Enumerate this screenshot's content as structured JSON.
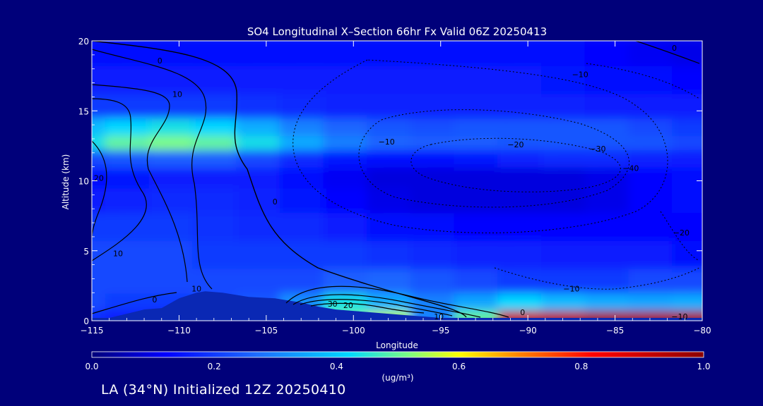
{
  "chart_data": {
    "type": "heatmap",
    "title": "SO4 Longitudinal X–Section 66hr  Fx Valid 06Z 20250413",
    "xlabel": "Longitude",
    "ylabel": "Altitude (km)",
    "xlim": [
      -115,
      -80
    ],
    "ylim": [
      0,
      20
    ],
    "xticks": [
      -115,
      -110,
      -105,
      -100,
      -95,
      -90,
      -85,
      -80
    ],
    "xtick_labels": [
      "−115",
      "−110",
      "−105",
      "−100",
      "−95",
      "−90",
      "−85",
      "−80"
    ],
    "yticks": [
      0,
      5,
      10,
      15,
      20
    ],
    "ytick_labels": [
      "0",
      "5",
      "10",
      "15",
      "20"
    ],
    "colorbar": {
      "label": "(ug/m³)",
      "min": 0.0,
      "max": 1.0,
      "ticks": [
        "0.0",
        "0.2",
        "0.4",
        "0.6",
        "0.8",
        "1.0"
      ],
      "colors": [
        "#00007a",
        "#0000ff",
        "#1e6dff",
        "#00d8ff",
        "#7fff7f",
        "#ffff00",
        "#ff8000",
        "#ff0000",
        "#8b0000"
      ]
    },
    "x": [
      -115,
      -112.5,
      -110,
      -107.5,
      -105,
      -102.5,
      -100,
      -97.5,
      -95,
      -92.5,
      -90,
      -87.5,
      -85,
      -82.5,
      -80
    ],
    "y": [
      0.5,
      1.5,
      3,
      5,
      7,
      9,
      10.5,
      12,
      13,
      14,
      15.5,
      17.5,
      19.5
    ],
    "values": [
      [
        0.18,
        0.16,
        0.14,
        0.16,
        0.2,
        0.26,
        0.5,
        0.55,
        0.3,
        0.5,
        0.9,
        0.92,
        0.95,
        0.95,
        0.95
      ],
      [
        0.22,
        0.2,
        0.2,
        0.22,
        0.24,
        0.32,
        0.44,
        0.36,
        0.3,
        0.35,
        0.42,
        0.38,
        0.36,
        0.35,
        0.36
      ],
      [
        0.22,
        0.22,
        0.22,
        0.22,
        0.22,
        0.22,
        0.25,
        0.26,
        0.24,
        0.22,
        0.2,
        0.2,
        0.2,
        0.22,
        0.22
      ],
      [
        0.22,
        0.22,
        0.22,
        0.2,
        0.2,
        0.2,
        0.2,
        0.19,
        0.18,
        0.17,
        0.17,
        0.16,
        0.16,
        0.16,
        0.14
      ],
      [
        0.2,
        0.2,
        0.2,
        0.19,
        0.18,
        0.18,
        0.16,
        0.14,
        0.13,
        0.12,
        0.12,
        0.12,
        0.12,
        0.12,
        0.12
      ],
      [
        0.16,
        0.17,
        0.18,
        0.18,
        0.17,
        0.15,
        0.12,
        0.1,
        0.09,
        0.09,
        0.09,
        0.09,
        0.1,
        0.12,
        0.14
      ],
      [
        0.14,
        0.15,
        0.16,
        0.16,
        0.16,
        0.14,
        0.11,
        0.09,
        0.09,
        0.09,
        0.09,
        0.09,
        0.1,
        0.12,
        0.14
      ],
      [
        0.22,
        0.24,
        0.25,
        0.25,
        0.22,
        0.18,
        0.15,
        0.14,
        0.14,
        0.15,
        0.17,
        0.18,
        0.18,
        0.17,
        0.16
      ],
      [
        0.44,
        0.5,
        0.52,
        0.5,
        0.44,
        0.36,
        0.3,
        0.26,
        0.25,
        0.25,
        0.24,
        0.24,
        0.24,
        0.24,
        0.22
      ],
      [
        0.38,
        0.42,
        0.44,
        0.42,
        0.36,
        0.3,
        0.26,
        0.24,
        0.23,
        0.24,
        0.24,
        0.24,
        0.24,
        0.22,
        0.2
      ],
      [
        0.2,
        0.2,
        0.2,
        0.2,
        0.19,
        0.18,
        0.17,
        0.17,
        0.17,
        0.17,
        0.17,
        0.17,
        0.16,
        0.16,
        0.16
      ],
      [
        0.16,
        0.16,
        0.16,
        0.16,
        0.16,
        0.16,
        0.16,
        0.16,
        0.16,
        0.16,
        0.16,
        0.15,
        0.14,
        0.13,
        0.12
      ],
      [
        0.14,
        0.14,
        0.14,
        0.14,
        0.14,
        0.14,
        0.14,
        0.14,
        0.14,
        0.14,
        0.14,
        0.13,
        0.12,
        0.11,
        0.1
      ]
    ],
    "terrain": {
      "x": [
        -115,
        -114,
        -113,
        -112,
        -111,
        -110,
        -109,
        -108.5,
        -107.5,
        -106,
        -104.5,
        -103,
        -102,
        -101,
        -100,
        -99,
        -98,
        -97,
        -96,
        -95,
        -80
      ],
      "y": [
        0.2,
        0.2,
        0.5,
        0.8,
        0.9,
        1.6,
        2.0,
        2.1,
        2.0,
        1.7,
        1.6,
        1.3,
        1.0,
        0.8,
        0.7,
        0.6,
        0.5,
        0.4,
        0.3,
        0.2,
        0.2
      ]
    },
    "contour_labels": [
      {
        "text": "0",
        "x": -111.1,
        "y": 18.4
      },
      {
        "text": "10",
        "x": -110.1,
        "y": 16.0
      },
      {
        "text": "20",
        "x": -114.6,
        "y": 10.0
      },
      {
        "text": "0",
        "x": -104.5,
        "y": 8.3
      },
      {
        "text": "10",
        "x": -113.5,
        "y": 4.6
      },
      {
        "text": "10",
        "x": -109.0,
        "y": 2.1
      },
      {
        "text": "0",
        "x": -111.4,
        "y": 1.3
      },
      {
        "text": "30",
        "x": -101.2,
        "y": 1.0
      },
      {
        "text": "20",
        "x": -100.3,
        "y": 0.9
      },
      {
        "text": "10",
        "x": -95.1,
        "y": 0.1
      },
      {
        "text": "0",
        "x": -90.3,
        "y": 0.4
      },
      {
        "text": "−10",
        "x": -98.1,
        "y": 12.6
      },
      {
        "text": "−20",
        "x": -90.7,
        "y": 12.4
      },
      {
        "text": "−30",
        "x": -86.0,
        "y": 12.1
      },
      {
        "text": "−40",
        "x": -84.1,
        "y": 10.7
      },
      {
        "text": "−10",
        "x": -87.0,
        "y": 17.4
      },
      {
        "text": "0",
        "x": -81.6,
        "y": 19.3
      },
      {
        "text": "−20",
        "x": -81.2,
        "y": 6.1
      },
      {
        "text": "−10",
        "x": -87.5,
        "y": 2.1
      },
      {
        "text": "−10",
        "x": -81.3,
        "y": 0.1
      }
    ]
  },
  "footer": {
    "text": "LA (34°N) Initialized 12Z 20250410"
  }
}
